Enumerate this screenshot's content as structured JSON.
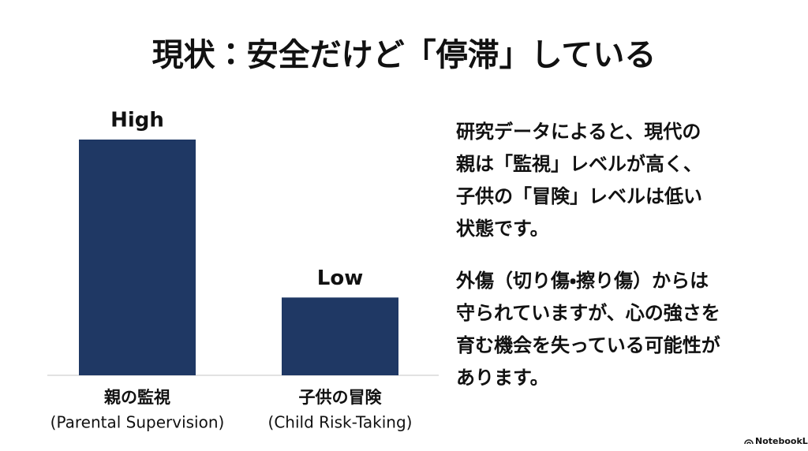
{
  "chart_data": {
    "type": "bar",
    "title": "現状：安全だけど「停滞」している",
    "categories": [
      [
        "親の監視",
        "(Parental Supervision)"
      ],
      [
        "子供の冒険",
        "(Child Risk-Taking)"
      ]
    ],
    "values": [
      100,
      33
    ],
    "value_labels": [
      "High",
      "Low"
    ],
    "color": "#1f3864",
    "ylim": [
      0,
      100
    ]
  },
  "notes": {
    "paragraphs": [
      [
        "研究データによると、現代の",
        "親は「監視」レベルが高く、",
        "子供の「冒険」レベルは低い",
        "状態です。"
      ],
      [
        "外傷（切り傷・擦り傷）からは",
        "守られていますが、心の強さを",
        "育む機会を失っている可能性が",
        "あります。"
      ]
    ]
  },
  "footer": {
    "brand": "NotebookLM"
  }
}
